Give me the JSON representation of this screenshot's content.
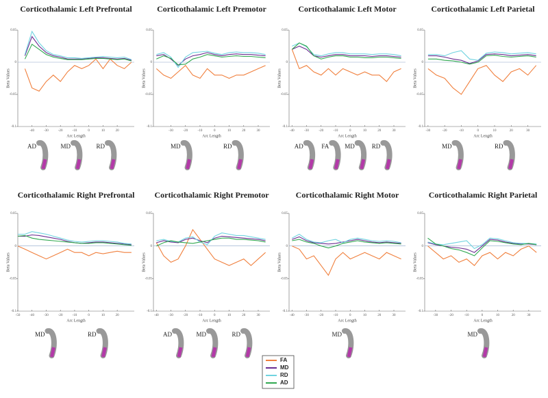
{
  "chart_data": [
    {
      "type": "line",
      "title": "Corticothalamic Left Prefrontal",
      "xlabel": "Arc Length",
      "ylabel": "Beta Values",
      "x": [
        -45,
        -40,
        -35,
        -30,
        -25,
        -20,
        -15,
        -10,
        -5,
        0,
        5,
        10,
        15,
        20,
        25,
        30
      ],
      "xlim": [
        -50,
        32
      ],
      "xticks": [
        -40,
        -30,
        -20,
        -10,
        0,
        10,
        20
      ],
      "ylim": [
        -0.1,
        0.05
      ],
      "yticks": [
        -0.1,
        -0.05,
        0,
        0.05
      ],
      "series": [
        {
          "name": "FA",
          "color": "#f07f3c",
          "values": [
            -0.01,
            -0.04,
            -0.045,
            -0.03,
            -0.02,
            -0.03,
            -0.015,
            -0.005,
            -0.01,
            -0.005,
            0.005,
            -0.01,
            0.005,
            -0.005,
            -0.01,
            0
          ]
        },
        {
          "name": "MD",
          "color": "#6a2c91",
          "values": [
            0.01,
            0.04,
            0.025,
            0.015,
            0.01,
            0.008,
            0.005,
            0.005,
            0.005,
            0.006,
            0.007,
            0.007,
            0.006,
            0.005,
            0.006,
            0.003
          ]
        },
        {
          "name": "RD",
          "color": "#6fd3e0",
          "values": [
            0.012,
            0.048,
            0.03,
            0.018,
            0.012,
            0.01,
            0.007,
            0.007,
            0.006,
            0.007,
            0.008,
            0.009,
            0.008,
            0.007,
            0.008,
            0.004
          ]
        },
        {
          "name": "AD",
          "color": "#2fa84f",
          "values": [
            0.005,
            0.028,
            0.02,
            0.012,
            0.008,
            0.006,
            0.004,
            0.004,
            0.004,
            0.005,
            0.006,
            0.006,
            0.005,
            0.004,
            0.005,
            0.002
          ]
        }
      ],
      "tract_labels": [
        "AD",
        "MD",
        "RD"
      ]
    },
    {
      "type": "line",
      "title": "Corticothalamic Left Premotor",
      "xlabel": "Arc Length",
      "ylabel": "Beta Values",
      "x": [
        -40,
        -35,
        -30,
        -25,
        -20,
        -15,
        -10,
        -5,
        0,
        5,
        10,
        15,
        20,
        25,
        30,
        35
      ],
      "xlim": [
        -42,
        38
      ],
      "xticks": [
        -30,
        -20,
        -10,
        0,
        10,
        20,
        30
      ],
      "ylim": [
        -0.1,
        0.05
      ],
      "yticks": [
        -0.1,
        -0.05,
        0,
        0.05
      ],
      "series": [
        {
          "name": "FA",
          "color": "#f07f3c",
          "values": [
            -0.01,
            -0.02,
            -0.025,
            -0.015,
            -0.005,
            -0.02,
            -0.025,
            -0.01,
            -0.02,
            -0.02,
            -0.025,
            -0.02,
            -0.02,
            -0.015,
            -0.01,
            -0.005
          ]
        },
        {
          "name": "MD",
          "color": "#6a2c91",
          "values": [
            0.01,
            0.012,
            0.005,
            -0.005,
            0.005,
            0.01,
            0.012,
            0.015,
            0.012,
            0.01,
            0.012,
            0.013,
            0.012,
            0.012,
            0.011,
            0.01
          ]
        },
        {
          "name": "RD",
          "color": "#6fd3e0",
          "values": [
            0.012,
            0.015,
            0.008,
            -0.008,
            0.008,
            0.015,
            0.016,
            0.017,
            0.014,
            0.012,
            0.015,
            0.016,
            0.015,
            0.015,
            0.014,
            0.012
          ]
        },
        {
          "name": "AD",
          "color": "#2fa84f",
          "values": [
            0.005,
            0.01,
            0.006,
            -0.004,
            -0.003,
            0.005,
            0.008,
            0.012,
            0.01,
            0.008,
            0.009,
            0.01,
            0.009,
            0.009,
            0.008,
            0.007
          ]
        }
      ],
      "tract_labels": [
        "MD",
        "RD"
      ]
    },
    {
      "type": "line",
      "title": "Corticothalamic Left Motor",
      "xlabel": "Arc Length",
      "ylabel": "Beta Values",
      "x": [
        -40,
        -35,
        -30,
        -25,
        -20,
        -15,
        -10,
        -5,
        0,
        5,
        10,
        15,
        20,
        25,
        30,
        35
      ],
      "xlim": [
        -42,
        38
      ],
      "xticks": [
        -40,
        -30,
        -20,
        -10,
        0,
        10,
        20,
        30
      ],
      "ylim": [
        -0.1,
        0.05
      ],
      "yticks": [
        -0.1,
        -0.05,
        0,
        0.05
      ],
      "series": [
        {
          "name": "FA",
          "color": "#f07f3c",
          "values": [
            0.02,
            -0.01,
            -0.005,
            -0.015,
            -0.02,
            -0.01,
            -0.02,
            -0.01,
            -0.015,
            -0.02,
            -0.015,
            -0.02,
            -0.02,
            -0.03,
            -0.015,
            -0.01
          ]
        },
        {
          "name": "MD",
          "color": "#6a2c91",
          "values": [
            0.02,
            0.025,
            0.02,
            0.01,
            0.008,
            0.01,
            0.012,
            0.012,
            0.01,
            0.01,
            0.01,
            0.009,
            0.01,
            0.01,
            0.009,
            0.008
          ]
        },
        {
          "name": "RD",
          "color": "#6fd3e0",
          "values": [
            0.025,
            0.03,
            0.024,
            0.012,
            0.01,
            0.013,
            0.015,
            0.015,
            0.013,
            0.013,
            0.013,
            0.012,
            0.013,
            0.013,
            0.012,
            0.01
          ]
        },
        {
          "name": "AD",
          "color": "#2fa84f",
          "values": [
            0.02,
            0.03,
            0.025,
            0.01,
            0.005,
            0.008,
            0.01,
            0.01,
            0.008,
            0.008,
            0.007,
            0.007,
            0.008,
            0.008,
            0.007,
            0.006
          ]
        }
      ],
      "tract_labels": [
        "AD",
        "FA",
        "MD",
        "RD"
      ]
    },
    {
      "type": "line",
      "title": "Corticothalamic Left Parietal",
      "xlabel": "Arc Length",
      "ylabel": "Beta Values",
      "x": [
        -30,
        -25,
        -20,
        -15,
        -10,
        -5,
        0,
        5,
        10,
        15,
        20,
        25,
        30,
        35
      ],
      "xlim": [
        -32,
        38
      ],
      "xticks": [
        -30,
        -20,
        -10,
        0,
        10,
        20,
        30
      ],
      "ylim": [
        -0.1,
        0.05
      ],
      "yticks": [
        -0.1,
        -0.05,
        0,
        0.05
      ],
      "series": [
        {
          "name": "FA",
          "color": "#f07f3c",
          "values": [
            -0.01,
            -0.02,
            -0.025,
            -0.04,
            -0.05,
            -0.03,
            -0.01,
            -0.005,
            -0.02,
            -0.03,
            -0.015,
            -0.01,
            -0.02,
            -0.005
          ]
        },
        {
          "name": "MD",
          "color": "#6a2c91",
          "values": [
            0.01,
            0.01,
            0.008,
            0.005,
            0.003,
            -0.002,
            0.002,
            0.012,
            0.013,
            0.012,
            0.01,
            0.011,
            0.012,
            0.01
          ]
        },
        {
          "name": "RD",
          "color": "#6fd3e0",
          "values": [
            0.012,
            0.012,
            0.01,
            0.015,
            0.018,
            0.005,
            0.003,
            0.014,
            0.016,
            0.015,
            0.013,
            0.014,
            0.015,
            0.013
          ]
        },
        {
          "name": "AD",
          "color": "#2fa84f",
          "values": [
            0.005,
            0.005,
            0.003,
            0.002,
            0.0,
            -0.003,
            0.0,
            0.01,
            0.011,
            0.009,
            0.008,
            0.009,
            0.01,
            0.008
          ]
        }
      ],
      "tract_labels": [
        "MD",
        "RD"
      ]
    },
    {
      "type": "line",
      "title": "Corticothalamic Right Prefrontal",
      "xlabel": "Arc Length",
      "ylabel": "Beta Values",
      "x": [
        -50,
        -45,
        -40,
        -35,
        -30,
        -25,
        -20,
        -15,
        -10,
        -5,
        0,
        5,
        10,
        15,
        20,
        25,
        30
      ],
      "xlim": [
        -50,
        32
      ],
      "xticks": [
        -50,
        -40,
        -30,
        -20,
        -10,
        0,
        10,
        20
      ],
      "ylim": [
        -0.1,
        0.05
      ],
      "yticks": [
        -0.1,
        -0.05,
        0,
        0.05
      ],
      "series": [
        {
          "name": "FA",
          "color": "#f07f3c",
          "values": [
            0.0,
            -0.005,
            -0.01,
            -0.015,
            -0.02,
            -0.015,
            -0.01,
            -0.005,
            -0.01,
            -0.01,
            -0.015,
            -0.01,
            -0.012,
            -0.01,
            -0.008,
            -0.01,
            -0.01
          ]
        },
        {
          "name": "MD",
          "color": "#6a2c91",
          "values": [
            0.015,
            0.015,
            0.017,
            0.016,
            0.014,
            0.012,
            0.01,
            0.007,
            0.005,
            0.004,
            0.005,
            0.006,
            0.006,
            0.005,
            0.004,
            0.003,
            0.002
          ]
        },
        {
          "name": "RD",
          "color": "#6fd3e0",
          "values": [
            0.018,
            0.018,
            0.022,
            0.02,
            0.018,
            0.015,
            0.012,
            0.009,
            0.007,
            0.006,
            0.007,
            0.008,
            0.008,
            0.007,
            0.006,
            0.004,
            0.003
          ]
        },
        {
          "name": "AD",
          "color": "#2fa84f",
          "values": [
            0.015,
            0.016,
            0.012,
            0.01,
            0.009,
            0.008,
            0.007,
            0.006,
            0.005,
            0.004,
            0.004,
            0.005,
            0.005,
            0.004,
            0.003,
            0.002,
            0.001
          ]
        }
      ],
      "tract_labels": [
        "MD",
        "RD"
      ]
    },
    {
      "type": "line",
      "title": "Corticothalamic Right Premotor",
      "xlabel": "Arc Length",
      "ylabel": "Beta Values",
      "x": [
        -40,
        -35,
        -30,
        -25,
        -20,
        -15,
        -10,
        -5,
        0,
        5,
        10,
        15,
        20,
        25,
        30,
        35
      ],
      "xlim": [
        -42,
        38
      ],
      "xticks": [
        -40,
        -30,
        -20,
        -10,
        0,
        10,
        20,
        30
      ],
      "ylim": [
        -0.1,
        0.05
      ],
      "yticks": [
        -0.1,
        -0.05,
        0,
        0.05
      ],
      "series": [
        {
          "name": "FA",
          "color": "#f07f3c",
          "values": [
            0.005,
            -0.015,
            -0.025,
            -0.02,
            0.0,
            0.025,
            0.01,
            -0.005,
            -0.02,
            -0.025,
            -0.03,
            -0.025,
            -0.02,
            -0.03,
            -0.02,
            -0.01
          ]
        },
        {
          "name": "MD",
          "color": "#6a2c91",
          "values": [
            0.005,
            0.008,
            0.006,
            0.005,
            0.01,
            0.012,
            0.008,
            0.005,
            0.012,
            0.015,
            0.014,
            0.013,
            0.012,
            0.011,
            0.01,
            0.008
          ]
        },
        {
          "name": "RD",
          "color": "#6fd3e0",
          "values": [
            0.008,
            0.01,
            0.007,
            0.006,
            0.012,
            0.014,
            0.006,
            0.002,
            0.015,
            0.02,
            0.018,
            0.016,
            0.016,
            0.014,
            0.012,
            0.01
          ]
        },
        {
          "name": "AD",
          "color": "#2fa84f",
          "values": [
            0.0,
            0.005,
            0.008,
            0.006,
            0.005,
            0.004,
            0.006,
            0.008,
            0.01,
            0.012,
            0.012,
            0.01,
            0.01,
            0.009,
            0.008,
            0.006
          ]
        }
      ],
      "tract_labels": [
        "AD",
        "MD",
        "RD"
      ]
    },
    {
      "type": "line",
      "title": "Corticothalamic Right Motor",
      "xlabel": "Arc Length",
      "ylabel": "Beta Values",
      "x": [
        -40,
        -35,
        -30,
        -25,
        -20,
        -15,
        -10,
        -5,
        0,
        5,
        10,
        15,
        20,
        25,
        30,
        35
      ],
      "xlim": [
        -42,
        38
      ],
      "xticks": [
        -40,
        -30,
        -20,
        -10,
        0,
        10,
        20,
        30
      ],
      "ylim": [
        -0.1,
        0.05
      ],
      "yticks": [
        -0.1,
        -0.05,
        0,
        0.05
      ],
      "series": [
        {
          "name": "FA",
          "color": "#f07f3c",
          "values": [
            0.0,
            -0.005,
            -0.02,
            -0.015,
            -0.03,
            -0.045,
            -0.02,
            -0.01,
            -0.02,
            -0.015,
            -0.01,
            -0.015,
            -0.02,
            -0.01,
            -0.015,
            -0.02
          ]
        },
        {
          "name": "MD",
          "color": "#6a2c91",
          "values": [
            0.01,
            0.014,
            0.008,
            0.005,
            0.004,
            0.003,
            0.004,
            0.006,
            0.008,
            0.01,
            0.008,
            0.006,
            0.005,
            0.006,
            0.005,
            0.004
          ]
        },
        {
          "name": "RD",
          "color": "#6fd3e0",
          "values": [
            0.012,
            0.018,
            0.01,
            0.006,
            0.005,
            0.008,
            0.01,
            0.005,
            0.01,
            0.012,
            0.01,
            0.008,
            0.007,
            0.008,
            0.007,
            0.005
          ]
        },
        {
          "name": "AD",
          "color": "#2fa84f",
          "values": [
            0.008,
            0.01,
            0.006,
            0.004,
            0.0,
            -0.003,
            0.0,
            0.004,
            0.006,
            0.008,
            0.006,
            0.005,
            0.004,
            0.005,
            0.004,
            0.003
          ]
        }
      ],
      "tract_labels": [
        "MD"
      ]
    },
    {
      "type": "line",
      "title": "Corticothalamic Right Parietal",
      "xlabel": "Arc Length",
      "ylabel": "Beta Values",
      "x": [
        -35,
        -30,
        -25,
        -20,
        -15,
        -10,
        -5,
        0,
        5,
        10,
        15,
        20,
        25,
        30,
        35
      ],
      "xlim": [
        -37,
        38
      ],
      "xticks": [
        -30,
        -20,
        -10,
        0,
        10,
        20,
        30
      ],
      "ylim": [
        -0.1,
        0.05
      ],
      "yticks": [
        -0.1,
        -0.05,
        0,
        0.05
      ],
      "series": [
        {
          "name": "FA",
          "color": "#f07f3c",
          "values": [
            0.0,
            -0.01,
            -0.02,
            -0.015,
            -0.025,
            -0.02,
            -0.03,
            -0.015,
            -0.01,
            -0.02,
            -0.01,
            -0.015,
            -0.005,
            0.0,
            -0.01
          ]
        },
        {
          "name": "MD",
          "color": "#6a2c91",
          "values": [
            0.005,
            0.002,
            0.0,
            -0.002,
            -0.003,
            -0.005,
            -0.01,
            0.0,
            0.01,
            0.009,
            0.006,
            0.004,
            0.003,
            0.003,
            0.002
          ]
        },
        {
          "name": "RD",
          "color": "#6fd3e0",
          "values": [
            0.006,
            0.003,
            0.002,
            0.004,
            0.006,
            0.008,
            -0.004,
            0.002,
            0.012,
            0.011,
            0.008,
            0.005,
            0.004,
            0.004,
            0.003
          ]
        },
        {
          "name": "AD",
          "color": "#2fa84f",
          "values": [
            0.012,
            0.003,
            0.0,
            -0.004,
            -0.006,
            -0.01,
            -0.015,
            -0.003,
            0.008,
            0.007,
            0.005,
            0.003,
            0.002,
            0.004,
            0.002
          ]
        }
      ],
      "tract_labels": [
        "MD"
      ]
    }
  ]
}
